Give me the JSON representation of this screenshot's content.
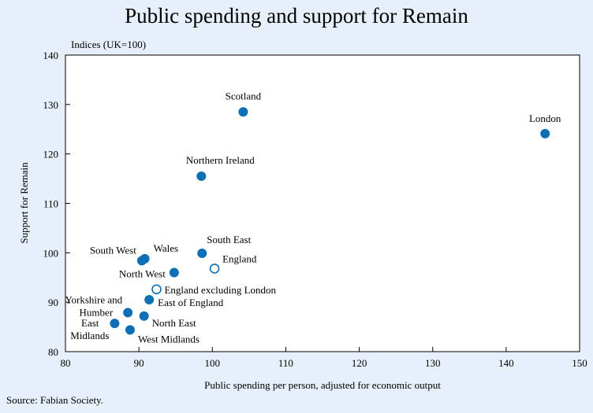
{
  "chart_data": {
    "type": "scatter",
    "title": "Public spending and support for Remain",
    "units_note": "Indices (UK=100)",
    "xlabel": "Public spending per person, adjusted for economic output",
    "ylabel": "Support for Remain",
    "xlim": [
      80,
      150
    ],
    "ylim": [
      80,
      140
    ],
    "xticks": [
      80,
      90,
      100,
      110,
      120,
      130,
      140,
      150
    ],
    "yticks": [
      80,
      90,
      100,
      110,
      120,
      130,
      140
    ],
    "grid": false,
    "source": "Source: Fabian Society.",
    "points": [
      {
        "label": "London",
        "x": 145.3,
        "y": 124.1,
        "hollow": false
      },
      {
        "label": "Scotland",
        "x": 104.2,
        "y": 128.5,
        "hollow": false
      },
      {
        "label": "Northern Ireland",
        "x": 98.5,
        "y": 115.5,
        "hollow": false
      },
      {
        "label": "South East",
        "x": 98.6,
        "y": 99.9,
        "hollow": false
      },
      {
        "label": "England",
        "x": 100.3,
        "y": 96.8,
        "hollow": true
      },
      {
        "label": "Wales",
        "x": 90.8,
        "y": 98.8,
        "hollow": false
      },
      {
        "label": "South West",
        "x": 90.4,
        "y": 98.4,
        "hollow": false
      },
      {
        "label": "North West",
        "x": 94.8,
        "y": 96.0,
        "hollow": false
      },
      {
        "label": "England excluding London",
        "x": 92.4,
        "y": 92.6,
        "hollow": true
      },
      {
        "label": "East of England",
        "x": 91.4,
        "y": 90.5,
        "hollow": false
      },
      {
        "label": "Yorkshire and Humber",
        "x": 88.5,
        "y": 87.9,
        "hollow": false
      },
      {
        "label": "North East",
        "x": 90.7,
        "y": 87.2,
        "hollow": false
      },
      {
        "label": "East Midlands",
        "x": 86.7,
        "y": 85.7,
        "hollow": false
      },
      {
        "label": "West Midlands",
        "x": 88.8,
        "y": 84.4,
        "hollow": false
      }
    ]
  },
  "colors": {
    "background": "#e7f0fa",
    "plot_area": "#ffffff",
    "marker": "#0f6fb5"
  }
}
